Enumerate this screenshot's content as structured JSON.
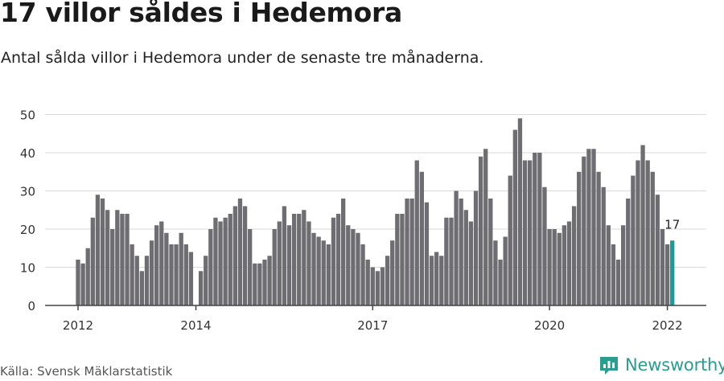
{
  "title": "17 villor såldes i Hedemora",
  "subtitle": "Antal sålda villor i Hedemora under de senaste tre månaderna.",
  "source": "Källa: Svensk Mäklarstatistik",
  "logo_text": "Newsworthy",
  "colors": {
    "bar": "#6e6d72",
    "highlight": "#1a9b9b",
    "grid": "#d9d9d9",
    "axis": "#444444",
    "brand": "#2a9d8f"
  },
  "chart_data": {
    "type": "bar",
    "title": "17 villor såldes i Hedemora",
    "ylim": [
      0,
      50
    ],
    "yticks": [
      0,
      10,
      20,
      30,
      40,
      50
    ],
    "grid": true,
    "x_start": "2012-01",
    "xticks": [
      {
        "label": "2012",
        "index": 0
      },
      {
        "label": "2014",
        "index": 24
      },
      {
        "label": "2017",
        "index": 60
      },
      {
        "label": "2020",
        "index": 96
      },
      {
        "label": "2022",
        "index": 120
      }
    ],
    "values": [
      12,
      11,
      15,
      23,
      29,
      28,
      25,
      20,
      25,
      24,
      24,
      16,
      13,
      9,
      13,
      17,
      21,
      22,
      19,
      16,
      16,
      19,
      16,
      14,
      0,
      9,
      13,
      20,
      23,
      22,
      23,
      24,
      26,
      28,
      26,
      20,
      11,
      11,
      12,
      13,
      20,
      22,
      26,
      21,
      24,
      24,
      25,
      22,
      19,
      18,
      17,
      16,
      23,
      24,
      28,
      21,
      20,
      19,
      16,
      12,
      10,
      9,
      10,
      13,
      17,
      24,
      24,
      28,
      28,
      38,
      35,
      27,
      13,
      14,
      13,
      23,
      23,
      30,
      28,
      25,
      22,
      30,
      39,
      41,
      28,
      17,
      12,
      18,
      34,
      46,
      49,
      38,
      38,
      40,
      40,
      31,
      20,
      20,
      19,
      21,
      22,
      26,
      35,
      39,
      41,
      41,
      35,
      31,
      21,
      16,
      12,
      21,
      28,
      34,
      38,
      42,
      38,
      35,
      29,
      20,
      16,
      17
    ],
    "highlight_index": 121,
    "annotation": "17"
  }
}
